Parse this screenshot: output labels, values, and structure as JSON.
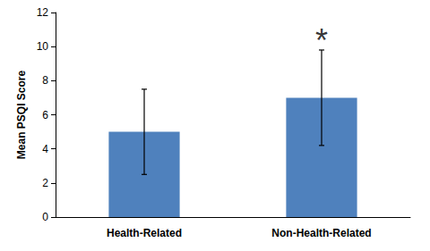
{
  "chart_data": {
    "type": "bar",
    "categories": [
      "Health-Related",
      "Non-Health-Related"
    ],
    "values": [
      5,
      7
    ],
    "errors": [
      2.5,
      2.8
    ],
    "color": "#4f81bd",
    "ylabel": "Mean PSQI Score",
    "ylim": [
      0,
      12
    ],
    "yticks": [
      0,
      2,
      4,
      6,
      8,
      10,
      12
    ],
    "grid": false,
    "annotations": [
      {
        "category": "Non-Health-Related",
        "text": "*"
      }
    ]
  }
}
